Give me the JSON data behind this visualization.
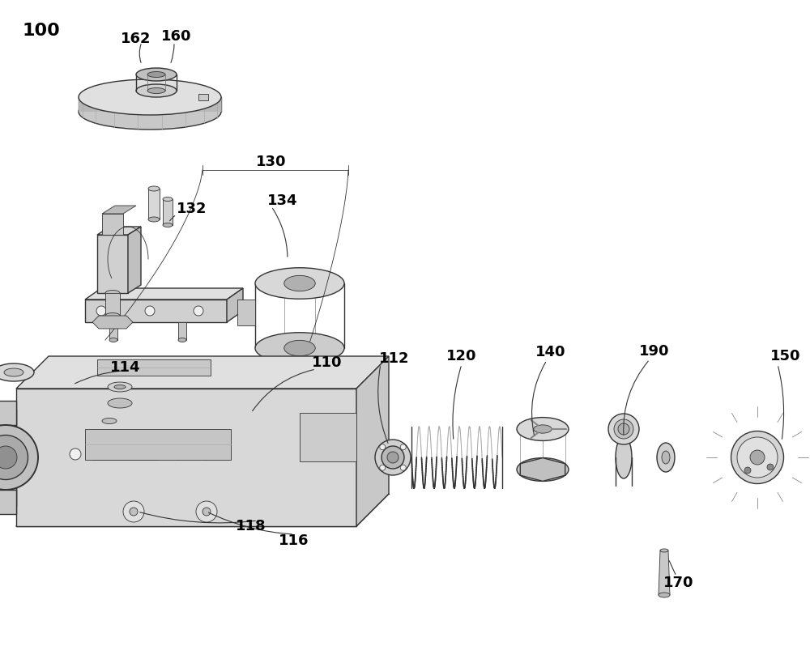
{
  "bg_color": "#ffffff",
  "line_color": "#333333",
  "label_color": "#000000",
  "fig_width": 10.0,
  "fig_height": 7.98,
  "dpi": 100
}
